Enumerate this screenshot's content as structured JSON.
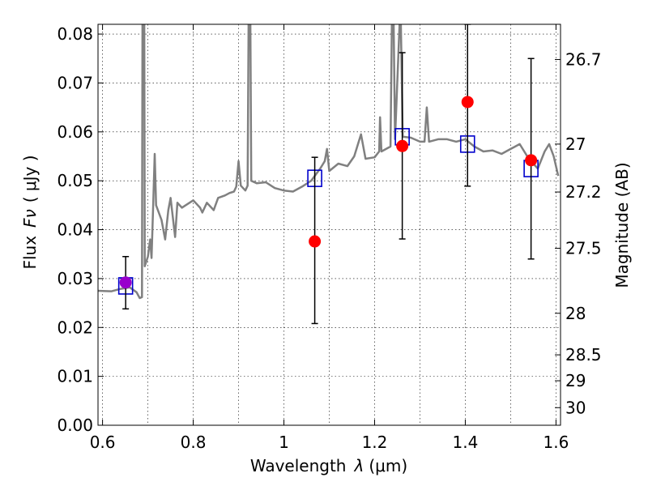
{
  "chart_data": {
    "type": "scatter",
    "xlabel_prefix": "Wavelength",
    "xlabel_symbol": "λ",
    "xlabel_unit": "(μm)",
    "ylabel_prefix": "Flux",
    "ylabel_symbol": "Fν",
    "ylabel_unit": "( μJy )",
    "y2label": "Magnitude (AB)",
    "xlim": [
      0.59,
      1.61
    ],
    "ylim": [
      0.0,
      0.082
    ],
    "grid": true,
    "x_ticks": [
      0.6,
      0.8,
      1.0,
      1.2,
      1.4,
      1.6
    ],
    "x_tick_labels": [
      "0.6",
      "0.8",
      "1",
      "1.2",
      "1.4",
      "1.6"
    ],
    "y_ticks": [
      0.0,
      0.01,
      0.02,
      0.03,
      0.04,
      0.05,
      0.06,
      0.07,
      0.08
    ],
    "y_tick_labels": [
      "0.00",
      "0.01",
      "0.02",
      "0.03",
      "0.04",
      "0.05",
      "0.06",
      "0.07",
      "0.08"
    ],
    "y2_ticks": [
      {
        "flux": 0.0748,
        "label": "26.7"
      },
      {
        "flux": 0.0575,
        "label": "27"
      },
      {
        "flux": 0.0477,
        "label": "27.2"
      },
      {
        "flux": 0.0362,
        "label": "27.5"
      },
      {
        "flux": 0.0229,
        "label": "28"
      },
      {
        "flux": 0.0144,
        "label": "28.5"
      },
      {
        "flux": 0.0091,
        "label": "29"
      },
      {
        "flux": 0.0036,
        "label": "30"
      }
    ],
    "colors": {
      "spectrum": "#808080",
      "observed": "#ff0000",
      "model": "#0000cc",
      "errorbar": "#000000",
      "highlight": "#9900cc"
    },
    "series": [
      {
        "kind": "spectrum",
        "points": [
          [
            0.59,
            0.0275
          ],
          [
            0.62,
            0.0274
          ],
          [
            0.64,
            0.0279
          ],
          [
            0.66,
            0.0282
          ],
          [
            0.675,
            0.0272
          ],
          [
            0.682,
            0.026
          ],
          [
            0.687,
            0.0262
          ],
          [
            0.688,
            0.082
          ],
          [
            0.692,
            0.082
          ],
          [
            0.693,
            0.0325
          ],
          [
            0.7,
            0.0345
          ],
          [
            0.705,
            0.038
          ],
          [
            0.708,
            0.0342
          ],
          [
            0.712,
            0.046
          ],
          [
            0.715,
            0.0555
          ],
          [
            0.718,
            0.045
          ],
          [
            0.73,
            0.042
          ],
          [
            0.738,
            0.038
          ],
          [
            0.745,
            0.044
          ],
          [
            0.75,
            0.0465
          ],
          [
            0.76,
            0.0385
          ],
          [
            0.765,
            0.0455
          ],
          [
            0.775,
            0.0445
          ],
          [
            0.8,
            0.046
          ],
          [
            0.815,
            0.0445
          ],
          [
            0.82,
            0.0435
          ],
          [
            0.83,
            0.0455
          ],
          [
            0.845,
            0.044
          ],
          [
            0.855,
            0.0465
          ],
          [
            0.87,
            0.047
          ],
          [
            0.88,
            0.0475
          ],
          [
            0.89,
            0.0478
          ],
          [
            0.895,
            0.0488
          ],
          [
            0.9,
            0.054
          ],
          [
            0.905,
            0.049
          ],
          [
            0.915,
            0.048
          ],
          [
            0.92,
            0.049
          ],
          [
            0.922,
            0.082
          ],
          [
            0.926,
            0.082
          ],
          [
            0.928,
            0.05
          ],
          [
            0.94,
            0.0495
          ],
          [
            0.96,
            0.0497
          ],
          [
            0.98,
            0.0485
          ],
          [
            1.0,
            0.048
          ],
          [
            1.02,
            0.0478
          ],
          [
            1.04,
            0.0488
          ],
          [
            1.06,
            0.05
          ],
          [
            1.08,
            0.0525
          ],
          [
            1.09,
            0.054
          ],
          [
            1.095,
            0.0565
          ],
          [
            1.1,
            0.052
          ],
          [
            1.12,
            0.0535
          ],
          [
            1.14,
            0.053
          ],
          [
            1.155,
            0.055
          ],
          [
            1.17,
            0.0595
          ],
          [
            1.18,
            0.0545
          ],
          [
            1.2,
            0.0548
          ],
          [
            1.21,
            0.056
          ],
          [
            1.212,
            0.063
          ],
          [
            1.215,
            0.056
          ],
          [
            1.235,
            0.057
          ],
          [
            1.238,
            0.082
          ],
          [
            1.242,
            0.082
          ],
          [
            1.245,
            0.0585
          ],
          [
            1.255,
            0.082
          ],
          [
            1.258,
            0.082
          ],
          [
            1.262,
            0.059
          ],
          [
            1.28,
            0.0588
          ],
          [
            1.3,
            0.058
          ],
          [
            1.31,
            0.058
          ],
          [
            1.315,
            0.065
          ],
          [
            1.32,
            0.058
          ],
          [
            1.34,
            0.0585
          ],
          [
            1.36,
            0.0585
          ],
          [
            1.38,
            0.058
          ],
          [
            1.4,
            0.0585
          ],
          [
            1.42,
            0.057
          ],
          [
            1.44,
            0.056
          ],
          [
            1.46,
            0.0562
          ],
          [
            1.48,
            0.0555
          ],
          [
            1.5,
            0.0565
          ],
          [
            1.52,
            0.0575
          ],
          [
            1.54,
            0.0545
          ],
          [
            1.56,
            0.0525
          ],
          [
            1.575,
            0.056
          ],
          [
            1.585,
            0.0575
          ],
          [
            1.595,
            0.055
          ],
          [
            1.6,
            0.053
          ],
          [
            1.605,
            0.051
          ]
        ]
      },
      {
        "kind": "model",
        "points": [
          [
            0.651,
            0.0285
          ],
          [
            1.068,
            0.0505
          ],
          [
            1.261,
            0.059
          ],
          [
            1.405,
            0.0575
          ],
          [
            1.545,
            0.0525
          ]
        ]
      },
      {
        "kind": "observed",
        "points": [
          {
            "x": 0.651,
            "y": 0.0292,
            "ylo": 0.0238,
            "yhi": 0.0345
          },
          {
            "x": 1.068,
            "y": 0.0376,
            "ylo": 0.0208,
            "yhi": 0.0548
          },
          {
            "x": 1.261,
            "y": 0.0571,
            "ylo": 0.0381,
            "yhi": 0.0762
          },
          {
            "x": 1.405,
            "y": 0.0661,
            "ylo": 0.0489,
            "yhi": 0.082
          },
          {
            "x": 1.545,
            "y": 0.0542,
            "ylo": 0.034,
            "yhi": 0.075
          }
        ]
      }
    ]
  }
}
